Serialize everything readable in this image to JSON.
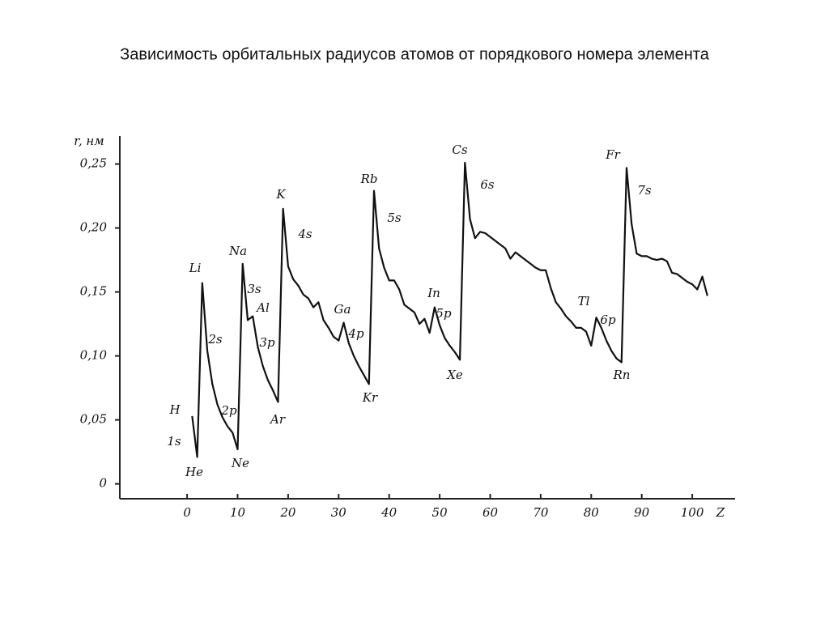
{
  "chart_data": {
    "type": "line",
    "title": "Зависимость орбитальных радиусов атомов от порядкового номера элемента",
    "y_label": "r, нм",
    "x_label": "Z",
    "x": [
      1,
      2,
      3,
      4,
      5,
      6,
      7,
      8,
      9,
      10,
      11,
      12,
      13,
      14,
      15,
      16,
      17,
      18,
      19,
      20,
      21,
      22,
      23,
      24,
      25,
      26,
      27,
      28,
      29,
      30,
      31,
      32,
      33,
      34,
      35,
      36,
      37,
      38,
      39,
      40,
      41,
      42,
      43,
      44,
      45,
      46,
      47,
      48,
      49,
      50,
      51,
      52,
      53,
      54,
      55,
      56,
      57,
      58,
      59,
      60,
      61,
      62,
      63,
      64,
      65,
      66,
      67,
      68,
      69,
      70,
      71,
      72,
      73,
      74,
      75,
      76,
      77,
      78,
      79,
      80,
      81,
      82,
      83,
      84,
      85,
      86,
      87,
      88,
      89,
      90,
      91,
      92,
      93,
      94,
      95,
      96,
      97,
      98,
      99,
      100,
      101,
      102,
      103
    ],
    "series": [
      {
        "name": "r",
        "color": "#111111",
        "values": [
          0.053,
          0.021,
          0.157,
          0.104,
          0.078,
          0.062,
          0.052,
          0.045,
          0.04,
          0.027,
          0.172,
          0.128,
          0.131,
          0.107,
          0.092,
          0.081,
          0.073,
          0.064,
          0.215,
          0.17,
          0.16,
          0.155,
          0.148,
          0.145,
          0.138,
          0.142,
          0.128,
          0.122,
          0.115,
          0.112,
          0.126,
          0.11,
          0.1,
          0.092,
          0.085,
          0.078,
          0.229,
          0.184,
          0.169,
          0.159,
          0.159,
          0.152,
          0.14,
          0.137,
          0.134,
          0.125,
          0.129,
          0.118,
          0.138,
          0.124,
          0.114,
          0.108,
          0.103,
          0.097,
          0.251,
          0.207,
          0.192,
          0.197,
          0.196,
          0.193,
          0.19,
          0.187,
          0.184,
          0.176,
          0.181,
          0.178,
          0.175,
          0.172,
          0.169,
          0.167,
          0.167,
          0.153,
          0.142,
          0.137,
          0.131,
          0.127,
          0.122,
          0.122,
          0.119,
          0.108,
          0.13,
          0.122,
          0.112,
          0.104,
          0.098,
          0.095,
          0.247,
          0.203,
          0.18,
          0.178,
          0.178,
          0.176,
          0.175,
          0.176,
          0.174,
          0.165,
          0.164,
          0.161,
          0.158,
          0.156,
          0.152,
          0.162,
          0.147
        ]
      }
    ],
    "xlim": [
      -13,
      108
    ],
    "ylim": [
      -0.011,
      0.27
    ],
    "xticks": [
      0,
      10,
      20,
      30,
      40,
      50,
      60,
      70,
      80,
      90,
      100
    ],
    "yticks": [
      0,
      {
        "value": 0.05,
        "label": "0,05"
      },
      {
        "value": 0.1,
        "label": "0,10"
      },
      {
        "value": 0.15,
        "label": "0,15"
      },
      {
        "value": 0.2,
        "label": "0,20"
      },
      {
        "value": 0.25,
        "label": "0,25"
      }
    ],
    "annotations": [
      "H",
      "1s",
      "He",
      "Li",
      "2s",
      "2p",
      "Ne",
      "Na",
      "3s",
      "Al",
      "3p",
      "Ar",
      "K",
      "4s",
      "Ga",
      "4p",
      "Kr",
      "Rb",
      "5s",
      "In",
      "5p",
      "Xe",
      "Cs",
      "6s",
      "Tl",
      "6p",
      "Rn",
      "Fr",
      "7s"
    ]
  }
}
